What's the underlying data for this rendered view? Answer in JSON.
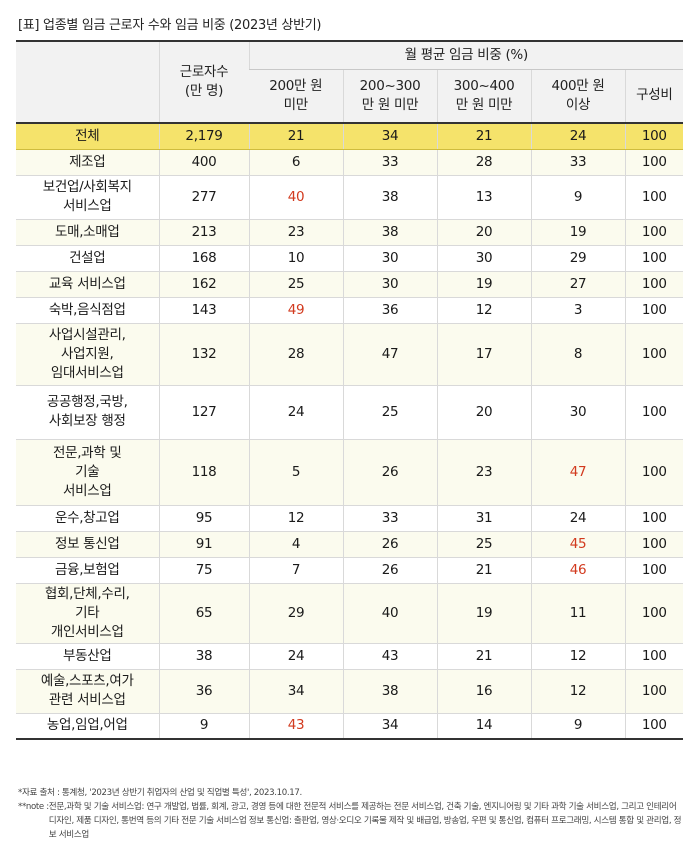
{
  "title": "[표] 업종별 임금 근로자 수와 임금 비중 (2023년 상반기)",
  "table": {
    "header": {
      "industry": "",
      "workers": "근로자수\n(만 명)",
      "group": "월 평균 임금 비중 (%)",
      "columns": [
        "200만 원\n미만",
        "200~300\n만 원 미만",
        "300~400\n만 원 미만",
        "400만 원\n이상",
        "구성비"
      ]
    },
    "rows": [
      {
        "industry": "전체",
        "workers": "2,179",
        "values": [
          "21",
          "34",
          "21",
          "24",
          "100"
        ],
        "highlight": []
      },
      {
        "industry": "제조업",
        "workers": "400",
        "values": [
          "6",
          "33",
          "28",
          "33",
          "100"
        ],
        "highlight": []
      },
      {
        "industry": "보건업/사회복지\n서비스업",
        "workers": "277",
        "values": [
          "40",
          "38",
          "13",
          "9",
          "100"
        ],
        "highlight": [
          0
        ]
      },
      {
        "industry": "도매,소매업",
        "workers": "213",
        "values": [
          "23",
          "38",
          "20",
          "19",
          "100"
        ],
        "highlight": []
      },
      {
        "industry": "건설업",
        "workers": "168",
        "values": [
          "10",
          "30",
          "30",
          "29",
          "100"
        ],
        "highlight": []
      },
      {
        "industry": "교육 서비스업",
        "workers": "162",
        "values": [
          "25",
          "30",
          "19",
          "27",
          "100"
        ],
        "highlight": []
      },
      {
        "industry": "숙박,음식점업",
        "workers": "143",
        "values": [
          "49",
          "36",
          "12",
          "3",
          "100"
        ],
        "highlight": [
          0
        ]
      },
      {
        "industry": "사업시설관리,\n사업지원,\n임대서비스업",
        "workers": "132",
        "values": [
          "28",
          "47",
          "17",
          "8",
          "100"
        ],
        "highlight": []
      },
      {
        "industry": "공공행정,국방,\n사회보장 행정",
        "workers": "127",
        "values": [
          "24",
          "25",
          "20",
          "30",
          "100"
        ],
        "highlight": []
      },
      {
        "industry": "전문,과학 및\n기술\n서비스업",
        "workers": "118",
        "values": [
          "5",
          "26",
          "23",
          "47",
          "100"
        ],
        "highlight": [
          3
        ]
      },
      {
        "industry": "운수,창고업",
        "workers": "95",
        "values": [
          "12",
          "33",
          "31",
          "24",
          "100"
        ],
        "highlight": []
      },
      {
        "industry": "정보 통신업",
        "workers": "91",
        "values": [
          "4",
          "26",
          "25",
          "45",
          "100"
        ],
        "highlight": [
          3
        ]
      },
      {
        "industry": "금융,보험업",
        "workers": "75",
        "values": [
          "7",
          "26",
          "21",
          "46",
          "100"
        ],
        "highlight": [
          3
        ]
      },
      {
        "industry": "협회,단체,수리,\n기타\n개인서비스업",
        "workers": "65",
        "values": [
          "29",
          "40",
          "19",
          "11",
          "100"
        ],
        "highlight": []
      },
      {
        "industry": "부동산업",
        "workers": "38",
        "values": [
          "24",
          "43",
          "21",
          "12",
          "100"
        ],
        "highlight": []
      },
      {
        "industry": "예술,스포츠,여가\n관련 서비스업",
        "workers": "36",
        "values": [
          "34",
          "38",
          "16",
          "12",
          "100"
        ],
        "highlight": []
      },
      {
        "industry": "농업,임업,어업",
        "workers": "9",
        "values": [
          "43",
          "34",
          "14",
          "9",
          "100"
        ],
        "highlight": [
          0
        ]
      }
    ]
  },
  "notes": [
    {
      "mark": "*",
      "text": "자료 출처 : 통계청, '2023년 상반기 취업자의 산업 및 직업별 특성', 2023.10.17."
    },
    {
      "mark": "**note : ",
      "text": "전문,과학 및 기술 서비스업: 연구 개발업, 법률, 회계, 광고, 경영 등에 대한 전문적 서비스를 제공하는 전문 서비스업, 건축 기술, 엔지니어링 및 기타 과학 기술 서비스업, 그리고 인테리어 디자인, 제품 디자인, 통번역 등의 기타 전문 기술 서비스업 정보 통신업: 출판업, 영상·오디오 기록물 제작 및 배급업, 방송업, 우편 및 통신업, 컴퓨터 프로그래밍, 시스템 통합 및 관리업, 정보 서비스업"
    }
  ],
  "colors": {
    "total_row": "#f5e36b",
    "alt_row": "#fbfbee",
    "header_bg": "#f2f2f2",
    "highlight_text": "#d23a1e"
  }
}
